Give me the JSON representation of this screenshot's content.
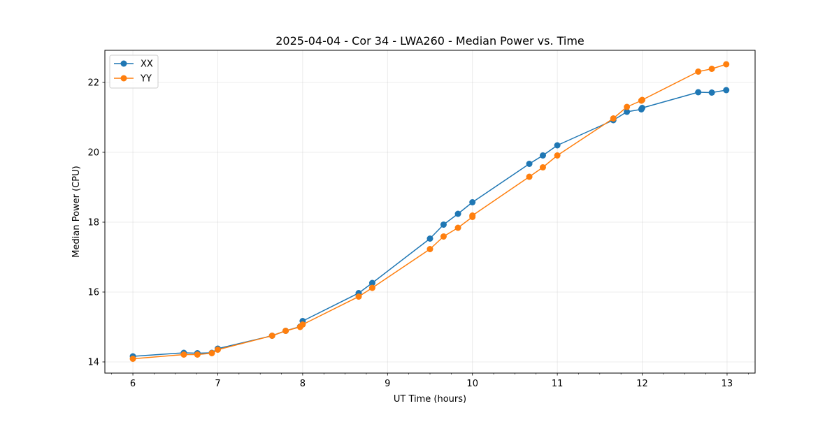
{
  "chart_data": {
    "type": "line",
    "title": "2025-04-04 - Cor 34 - LWA260 - Median Power vs. Time",
    "xlabel": "UT Time (hours)",
    "ylabel": "Median Power (CPU)",
    "xlim": [
      5.67,
      13.33
    ],
    "ylim": [
      13.68,
      22.92
    ],
    "xticks": [
      6,
      7,
      8,
      9,
      10,
      11,
      12,
      13
    ],
    "xtick_labels": [
      "6",
      "7",
      "8",
      "9",
      "10",
      "11",
      "12",
      "13"
    ],
    "yticks": [
      14,
      16,
      18,
      20,
      22
    ],
    "ytick_labels": [
      "14",
      "16",
      "18",
      "20",
      "22"
    ],
    "x_minor_step": 0.25,
    "grid": true,
    "legend_position": "upper-left",
    "series": [
      {
        "name": "XX",
        "color": "#1f77b4",
        "x": [
          6.0,
          6.6,
          6.76,
          6.93,
          7.0,
          7.64,
          7.8,
          7.97,
          8.0,
          8.66,
          8.82,
          9.5,
          9.66,
          9.83,
          10.0,
          10.67,
          10.83,
          11.0,
          11.66,
          11.82,
          11.99,
          12.0,
          12.66,
          12.82,
          12.99
        ],
        "y": [
          14.16,
          14.26,
          14.25,
          14.26,
          14.38,
          14.75,
          14.89,
          15.01,
          15.17,
          15.97,
          16.26,
          17.53,
          17.93,
          18.24,
          18.57,
          19.67,
          19.91,
          20.2,
          20.92,
          21.16,
          21.23,
          21.27,
          21.72,
          21.71,
          21.78
        ]
      },
      {
        "name": "YY",
        "color": "#ff7f0e",
        "x": [
          6.0,
          6.6,
          6.76,
          6.93,
          7.0,
          7.64,
          7.8,
          7.97,
          8.0,
          8.66,
          8.82,
          9.5,
          9.66,
          9.83,
          10.0,
          10.0,
          10.67,
          10.83,
          11.0,
          11.66,
          11.82,
          11.99,
          12.0,
          12.66,
          12.82,
          12.99
        ],
        "y": [
          14.09,
          14.21,
          14.21,
          14.25,
          14.35,
          14.75,
          14.89,
          15.0,
          15.07,
          15.87,
          16.12,
          17.23,
          17.59,
          17.84,
          18.15,
          18.19,
          19.3,
          19.57,
          19.91,
          20.97,
          21.3,
          21.48,
          21.5,
          22.31,
          22.39,
          22.52
        ]
      }
    ]
  }
}
